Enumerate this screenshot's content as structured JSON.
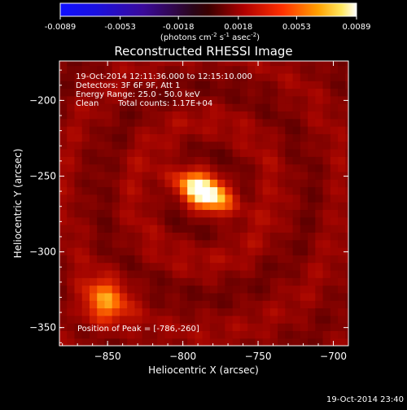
{
  "colorbar": {
    "ticks": [
      "-0.0089",
      "-0.0053",
      "-0.0018",
      "0.0018",
      "0.0053",
      "0.0089"
    ],
    "unit_parts": [
      "(photons cm",
      "-2",
      " s",
      "-1",
      " asec",
      "-2",
      ")"
    ],
    "min": -0.0089,
    "max": 0.0089
  },
  "header_date": "19-Oct-2014 23:40",
  "chart_data": {
    "type": "heatmap",
    "title": "Reconstructed RHESSI Image",
    "xlabel": "Heliocentric X (arcsec)",
    "ylabel": "Heliocentric Y (arcsec)",
    "xlim": [
      -882,
      -690
    ],
    "ylim": [
      -362,
      -174
    ],
    "xticks": [
      -850,
      -800,
      -750,
      -700
    ],
    "yticks": [
      -200,
      -250,
      -300,
      -350
    ],
    "xtick_labels": [
      "−850",
      "−800",
      "−750",
      "−700"
    ],
    "ytick_labels": [
      "−200",
      "−250",
      "−300",
      "−350"
    ],
    "annotations": [
      "19-Oct-2014 12:11:36.000 to 12:15:10.000",
      "Detectors: 3F 6F 9F, Att 1",
      "Energy Range: 25.0 - 50.0 keV",
      "Clean",
      "Total counts: 1.17E+04"
    ],
    "peak_label": "Position of Peak = [-786,-260]",
    "peak": {
      "x": -786,
      "y": -260,
      "value": 0.0089
    },
    "secondary_source": {
      "x": -852,
      "y": -333
    },
    "colormap": "rhessi-color-table-5"
  }
}
